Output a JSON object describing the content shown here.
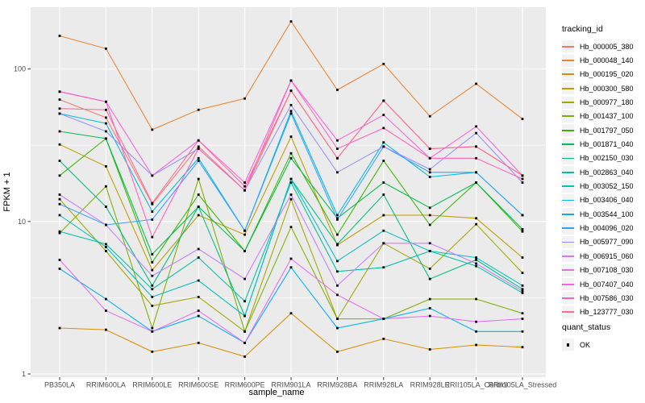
{
  "figure": {
    "panel_background": "#EBEBEB",
    "grid_color": "#FFFFFF",
    "tick_label_color": "#4D4D4D",
    "axis_title_color": "#000000",
    "point_color": "#000000"
  },
  "chart_data": {
    "type": "line",
    "title": "",
    "xlabel": "sample_name",
    "ylabel": "FPKM + 1",
    "y_scale": "log10",
    "y_ticks": [
      1,
      10,
      100
    ],
    "y_minor_ticks": [
      3.162,
      31.62
    ],
    "ylim": [
      1,
      250
    ],
    "grid": true,
    "legend_position": "right",
    "categories": [
      "PB350LA",
      "RRIM600LA",
      "RRIM600LE",
      "RRIM600SE",
      "RRIM600PE",
      "RRIM901LA",
      "RRIM928BA",
      "RRIM928LA",
      "RRIM928LE",
      "RRII105LA_Control",
      "RRII105LA_Stressed"
    ],
    "series": [
      {
        "name": "Hb_000005_380",
        "color": "#F8766D",
        "values": [
          63,
          48,
          13,
          31,
          16,
          72,
          26,
          62,
          30,
          31,
          20
        ]
      },
      {
        "name": "Hb_000048_140",
        "color": "#EA8331",
        "values": [
          165,
          136,
          40,
          54,
          64,
          205,
          73,
          108,
          49,
          80,
          47
        ]
      },
      {
        "name": "Hb_000195_020",
        "color": "#D89000",
        "values": [
          2.0,
          1.95,
          1.4,
          1.6,
          1.3,
          2.5,
          1.4,
          1.7,
          1.45,
          1.55,
          1.5
        ]
      },
      {
        "name": "Hb_000300_580",
        "color": "#C09B00",
        "values": [
          32,
          23,
          4.8,
          11,
          8.2,
          36,
          7.0,
          11,
          11,
          10.5,
          5.8
        ]
      },
      {
        "name": "Hb_000977_180",
        "color": "#A3A500",
        "values": [
          14,
          6.4,
          2.8,
          3.2,
          1.9,
          14,
          2.3,
          7.2,
          4.9,
          9.6,
          4.6
        ]
      },
      {
        "name": "Hb_001437_100",
        "color": "#7CAE00",
        "values": [
          8.4,
          17,
          2.0,
          19,
          1.9,
          9.2,
          2.3,
          2.3,
          3.1,
          3.1,
          2.5
        ]
      },
      {
        "name": "Hb_001797_050",
        "color": "#39B600",
        "values": [
          20,
          35,
          5.4,
          15,
          6.4,
          28,
          8.2,
          25,
          9.5,
          18,
          8.6
        ]
      },
      {
        "name": "Hb_001871_040",
        "color": "#00BB4E",
        "values": [
          39,
          35,
          6.1,
          12.5,
          6.4,
          26,
          10.5,
          18,
          12.3,
          18,
          8.9
        ]
      },
      {
        "name": "Hb_002150_030",
        "color": "#00BF7D",
        "values": [
          25,
          12.5,
          3.8,
          12.5,
          2.4,
          19,
          7.1,
          15,
          4.2,
          5.6,
          3.6
        ]
      },
      {
        "name": "Hb_002863_040",
        "color": "#00C1A3",
        "values": [
          8.6,
          7.1,
          3.6,
          5.8,
          3.0,
          18,
          4.7,
          5.0,
          6.4,
          5.1,
          3.4
        ]
      },
      {
        "name": "Hb_003052_150",
        "color": "#00BFC4",
        "values": [
          11,
          6.8,
          3.2,
          4.1,
          2.4,
          19,
          5.5,
          8.7,
          6.4,
          5.8,
          3.8
        ]
      },
      {
        "name": "Hb_003406_040",
        "color": "#00BAE0",
        "values": [
          51,
          44,
          11.6,
          26,
          8.7,
          53,
          11,
          33,
          19.6,
          21,
          11
        ]
      },
      {
        "name": "Hb_003544_100",
        "color": "#00B0F6",
        "values": [
          4.9,
          3.1,
          1.9,
          2.4,
          1.6,
          5.0,
          2.0,
          2.3,
          2.7,
          1.9,
          1.9
        ]
      },
      {
        "name": "Hb_004096_020",
        "color": "#35A2FF",
        "values": [
          13,
          9.5,
          10.3,
          25,
          8.7,
          51,
          10.3,
          31,
          21,
          21,
          11
        ]
      },
      {
        "name": "Hb_005977_090",
        "color": "#9590FF",
        "values": [
          51,
          39,
          20,
          30,
          16,
          58,
          21,
          31,
          22,
          38,
          18
        ]
      },
      {
        "name": "Hb_006915_060",
        "color": "#C77CFF",
        "values": [
          15,
          9.5,
          4.4,
          6.6,
          4.2,
          15,
          3.8,
          7.2,
          7.2,
          5.3,
          3.5
        ]
      },
      {
        "name": "Hb_007108_030",
        "color": "#E76BF3",
        "values": [
          5.6,
          2.6,
          1.9,
          2.6,
          1.6,
          5.7,
          3.3,
          2.3,
          2.4,
          2.2,
          2.3
        ]
      },
      {
        "name": "Hb_007407_040",
        "color": "#FA62DB",
        "values": [
          71,
          61,
          20,
          34,
          18,
          84,
          34,
          50,
          26,
          42,
          20
        ]
      },
      {
        "name": "Hb_007586_030",
        "color": "#FF62BC",
        "values": [
          71,
          61,
          7.9,
          30,
          16,
          84,
          30,
          41,
          26,
          26,
          19
        ]
      },
      {
        "name": "Hb_123777_030",
        "color": "#FF6A98",
        "values": [
          55,
          54,
          13.2,
          34,
          17,
          72,
          26,
          62,
          30,
          31,
          20
        ]
      }
    ],
    "legend": {
      "color_title": "tracking_id",
      "shape_title": "quant_status",
      "shape_items": [
        {
          "label": "OK"
        }
      ]
    }
  }
}
